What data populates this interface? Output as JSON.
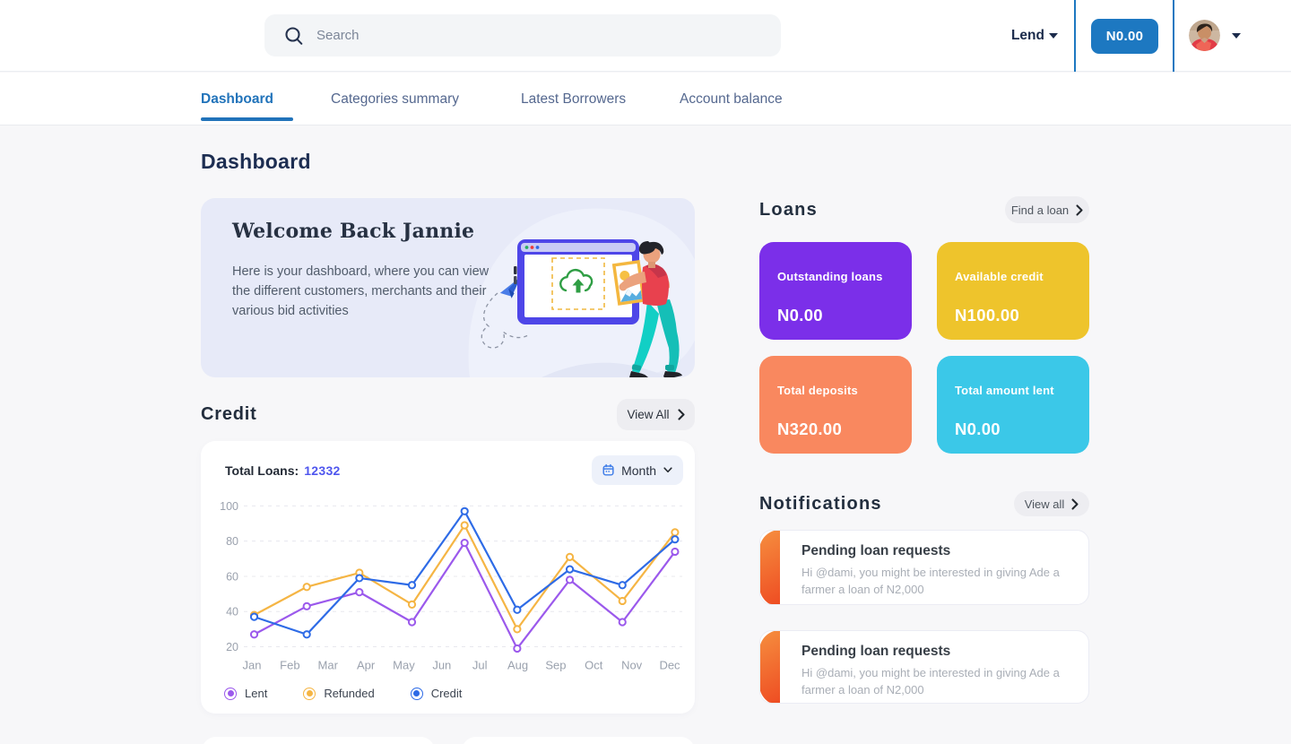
{
  "header": {
    "search_placeholder": "Search",
    "lend_label": "Lend",
    "balance_button_label": "N0.00"
  },
  "tabs": [
    {
      "label": "Dashboard",
      "active": true
    },
    {
      "label": "Categories summary",
      "active": false
    },
    {
      "label": "Latest Borrowers",
      "active": false
    },
    {
      "label": "Account balance",
      "active": false
    }
  ],
  "page_title": "Dashboard",
  "welcome": {
    "title": "Welcome Back Jannie",
    "body": "Here is your dashboard, where you can view the different customers, merchants and their various bid activities"
  },
  "credit": {
    "section_title": "Credit",
    "view_all_label": "View All",
    "total_loans_label": "Total Loans:",
    "total_loans_value": "12332",
    "period_selector_value": "Month"
  },
  "chart_data": {
    "type": "line",
    "title": "Credit — monthly lent / refunded / credit",
    "x_labels": [
      "Jan",
      "Feb",
      "Mar",
      "Apr",
      "May",
      "Jun",
      "Jul",
      "Aug",
      "Sep",
      "Oct",
      "Nov",
      "Dec"
    ],
    "y_ticks": [
      20,
      40,
      60,
      80,
      100
    ],
    "ylim": [
      20,
      100
    ],
    "grid": "horizontal-dashed",
    "legend_position": "bottom",
    "series": [
      {
        "name": "Lent",
        "color": "#9b59ec",
        "values": [
          27,
          43,
          51,
          34,
          79,
          19,
          58,
          34,
          74
        ]
      },
      {
        "name": "Refunded",
        "color": "#f5b544",
        "values": [
          38,
          54,
          62,
          44,
          89,
          30,
          71,
          46,
          85
        ]
      },
      {
        "name": "Credit",
        "color": "#2e6be6",
        "values": [
          37,
          27,
          59,
          55,
          97,
          41,
          64,
          55,
          81
        ]
      }
    ]
  },
  "loans": {
    "section_title": "Loans",
    "find_loan_label": "Find a loan",
    "cards": [
      {
        "label": "Outstanding loans",
        "value": "N0.00",
        "color": "#7b2fe9"
      },
      {
        "label": "Available credit",
        "value": "N100.00",
        "color": "#eec42c"
      },
      {
        "label": "Total deposits",
        "value": "N320.00",
        "color": "#f9885f"
      },
      {
        "label": "Total amount lent",
        "value": "N0.00",
        "color": "#3bc8e8"
      }
    ]
  },
  "notifications": {
    "section_title": "Notifications",
    "view_all_label": "View all",
    "accent_gradient": [
      "#f68f3f",
      "#ee4b22"
    ],
    "items": [
      {
        "title": "Pending loan requests",
        "body": "Hi @dami, you might be interested in giving Ade a farmer a loan of N2,000"
      },
      {
        "title": "Pending loan requests",
        "body": "Hi @dami, you might be interested in giving Ade a farmer a loan of N2,000"
      }
    ]
  },
  "colors": {
    "header_accent_blue": "#1d78c1",
    "tab_active_blue": "#2173ba",
    "total_loans_value_blue": "#4f56ee",
    "page_bg": "#f7f7f9"
  }
}
